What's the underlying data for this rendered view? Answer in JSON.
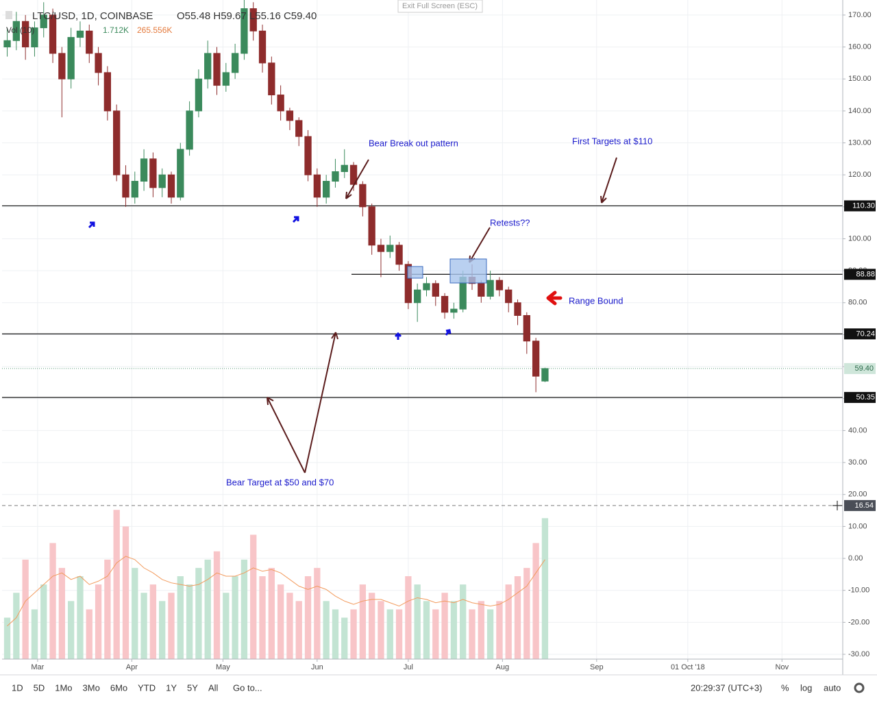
{
  "header": {
    "symbol": "LTC/USD, 1D, COINBASE",
    "ohlc": "O55.48 H59.67 L55.16 C59.40",
    "vol_label": "Vol (10)",
    "vol_value": "1.712K",
    "vol_ma_value": "265.556K",
    "exit": "Exit Full Screen (ESC)"
  },
  "toolbar": {
    "ranges": [
      "1D",
      "5D",
      "1Mo",
      "3Mo",
      "6Mo",
      "YTD",
      "1Y",
      "5Y",
      "All"
    ],
    "goto": "Go to...",
    "clock": "20:29:37 (UTC+3)",
    "percent": "%",
    "log": "log",
    "auto": "auto"
  },
  "annotations": [
    "Bear Break out pattern",
    "First Targets at $110",
    "Retests??",
    "Range Bound",
    "Bear Target at $50 and $70"
  ],
  "chart_data": {
    "type": "candlestick",
    "x": [
      -10,
      -7,
      -4,
      -1,
      2,
      5,
      8,
      11,
      14,
      17,
      20,
      23,
      26,
      29,
      32,
      35,
      38,
      41,
      44,
      47,
      50,
      53,
      56,
      59,
      62,
      65,
      68,
      71,
      74,
      77,
      80,
      83,
      86,
      89,
      92,
      95,
      98,
      101,
      104,
      107,
      110,
      113,
      116,
      119,
      122,
      125,
      128,
      131,
      134,
      137,
      140,
      143,
      146,
      149,
      152,
      155,
      158,
      161,
      164,
      167
    ],
    "open": [
      160,
      162,
      168,
      160,
      166,
      170,
      158,
      150,
      163,
      165,
      158,
      152,
      140,
      120,
      113,
      118,
      125,
      116,
      120,
      113,
      128,
      140,
      150,
      158,
      148,
      152,
      158,
      172,
      165,
      155,
      145,
      140,
      137,
      132,
      120,
      113,
      118,
      121,
      123,
      117,
      110,
      98,
      96,
      98,
      92,
      80,
      84,
      86,
      82,
      77,
      78,
      88,
      86,
      82,
      87,
      84,
      80,
      76,
      68,
      55.48
    ],
    "high": [
      166,
      171,
      170,
      168,
      174,
      172,
      160,
      166,
      168,
      167,
      160,
      154,
      142,
      123,
      121,
      128,
      127,
      122,
      121,
      130,
      143,
      153,
      162,
      160,
      155,
      161,
      175,
      174,
      167,
      157,
      148,
      141,
      138,
      134,
      122,
      120,
      125,
      128,
      124,
      118,
      111,
      100,
      101,
      99,
      93,
      86,
      88,
      87,
      83,
      80,
      90,
      92,
      87,
      90,
      88,
      85,
      81,
      77,
      69,
      59.67
    ],
    "low": [
      157,
      159,
      156,
      157,
      163,
      155,
      138,
      147,
      160,
      155,
      148,
      137,
      118,
      110,
      111,
      115,
      113,
      113,
      111,
      112,
      126,
      138,
      147,
      145,
      146,
      150,
      156,
      162,
      152,
      142,
      137,
      134,
      129,
      118,
      110,
      111,
      116,
      119,
      115,
      107,
      95,
      88,
      94,
      90,
      78,
      74,
      82,
      79,
      75,
      75,
      77,
      84,
      80,
      81,
      82,
      77,
      73,
      64,
      52,
      55.16
    ],
    "close": [
      162,
      168,
      160,
      166,
      170,
      158,
      150,
      163,
      165,
      158,
      152,
      140,
      120,
      113,
      118,
      125,
      116,
      120,
      113,
      128,
      140,
      150,
      158,
      148,
      152,
      158,
      172,
      165,
      155,
      145,
      140,
      137,
      132,
      120,
      113,
      118,
      121,
      123,
      117,
      110,
      98,
      96,
      98,
      92,
      80,
      84,
      86,
      82,
      77,
      78,
      88,
      86,
      82,
      87,
      84,
      80,
      76,
      68,
      57,
      59.4
    ],
    "volume": [
      25,
      40,
      60,
      30,
      45,
      70,
      55,
      35,
      50,
      30,
      45,
      60,
      90,
      80,
      55,
      40,
      45,
      35,
      40,
      50,
      45,
      55,
      60,
      65,
      40,
      50,
      60,
      75,
      50,
      55,
      45,
      40,
      35,
      50,
      55,
      35,
      30,
      25,
      30,
      45,
      40,
      35,
      30,
      30,
      50,
      45,
      35,
      30,
      40,
      35,
      45,
      30,
      35,
      30,
      35,
      45,
      50,
      55,
      70,
      85
    ],
    "volume_ma": [
      20,
      25,
      35,
      40,
      45,
      50,
      52,
      48,
      50,
      45,
      47,
      50,
      58,
      62,
      60,
      55,
      52,
      48,
      46,
      45,
      44,
      45,
      48,
      52,
      50,
      50,
      52,
      55,
      53,
      54,
      52,
      48,
      44,
      42,
      44,
      42,
      38,
      35,
      33,
      35,
      36,
      36,
      34,
      32,
      35,
      37,
      36,
      34,
      35,
      34,
      36,
      34,
      33,
      32,
      33,
      36,
      40,
      44,
      52,
      60
    ],
    "volume_lim": [
      0,
      100
    ],
    "up_color": "#3b8a5c",
    "down_color": "#8e2c2c",
    "up_volume_color": "#c3e4d3",
    "down_volume_color": "#f8c5c8",
    "volume_ma_color": "#f29a5c",
    "xlim": [
      -11.7,
      265
    ],
    "xticks": [
      {
        "value": 0,
        "label": "Mar"
      },
      {
        "value": 31,
        "label": "Apr"
      },
      {
        "value": 61,
        "label": "May"
      },
      {
        "value": 92,
        "label": "Jun"
      },
      {
        "value": 122,
        "label": "Jul"
      },
      {
        "value": 153,
        "label": "Aug"
      },
      {
        "value": 184,
        "label": "Sep"
      },
      {
        "value": 214,
        "label": "01 Oct '18"
      },
      {
        "value": 245,
        "label": "Nov"
      }
    ],
    "ylim": [
      -31.5,
      174.7
    ],
    "yticks": [
      {
        "value": -30,
        "label": "-30.00"
      },
      {
        "value": -20,
        "label": "-20.00"
      },
      {
        "value": -10,
        "label": "-10.00"
      },
      {
        "value": 0,
        "label": "0.00"
      },
      {
        "value": 10,
        "label": "10.00"
      },
      {
        "value": 20,
        "label": "20.00"
      },
      {
        "value": 30,
        "label": "30.00"
      },
      {
        "value": 40,
        "label": "40.00"
      },
      {
        "value": 50,
        "label": "50.00"
      },
      {
        "value": 60,
        "label": "60.00"
      },
      {
        "value": 70,
        "label": "70.00"
      },
      {
        "value": 80,
        "label": "80.00"
      },
      {
        "value": 90,
        "label": "90.00"
      },
      {
        "value": 100,
        "label": "100.00"
      },
      {
        "value": 110,
        "label": "110.00"
      },
      {
        "value": 120,
        "label": "120.00"
      },
      {
        "value": 130,
        "label": "130.00"
      },
      {
        "value": 140,
        "label": "140.00"
      },
      {
        "value": 150,
        "label": "150.00"
      },
      {
        "value": 160,
        "label": "160.00"
      },
      {
        "value": 170,
        "label": "170.00"
      }
    ],
    "levels": [
      {
        "value": 110.3,
        "label": "110.30"
      },
      {
        "value": 88.88,
        "label": "88.88"
      },
      {
        "value": 70.24,
        "label": "70.24"
      },
      {
        "value": 50.35,
        "label": "50.35"
      }
    ],
    "last_price": {
      "value": 59.4,
      "label": "59.40"
    },
    "crosshair": {
      "value": 16.54,
      "label": "16.54"
    },
    "grid": true
  }
}
